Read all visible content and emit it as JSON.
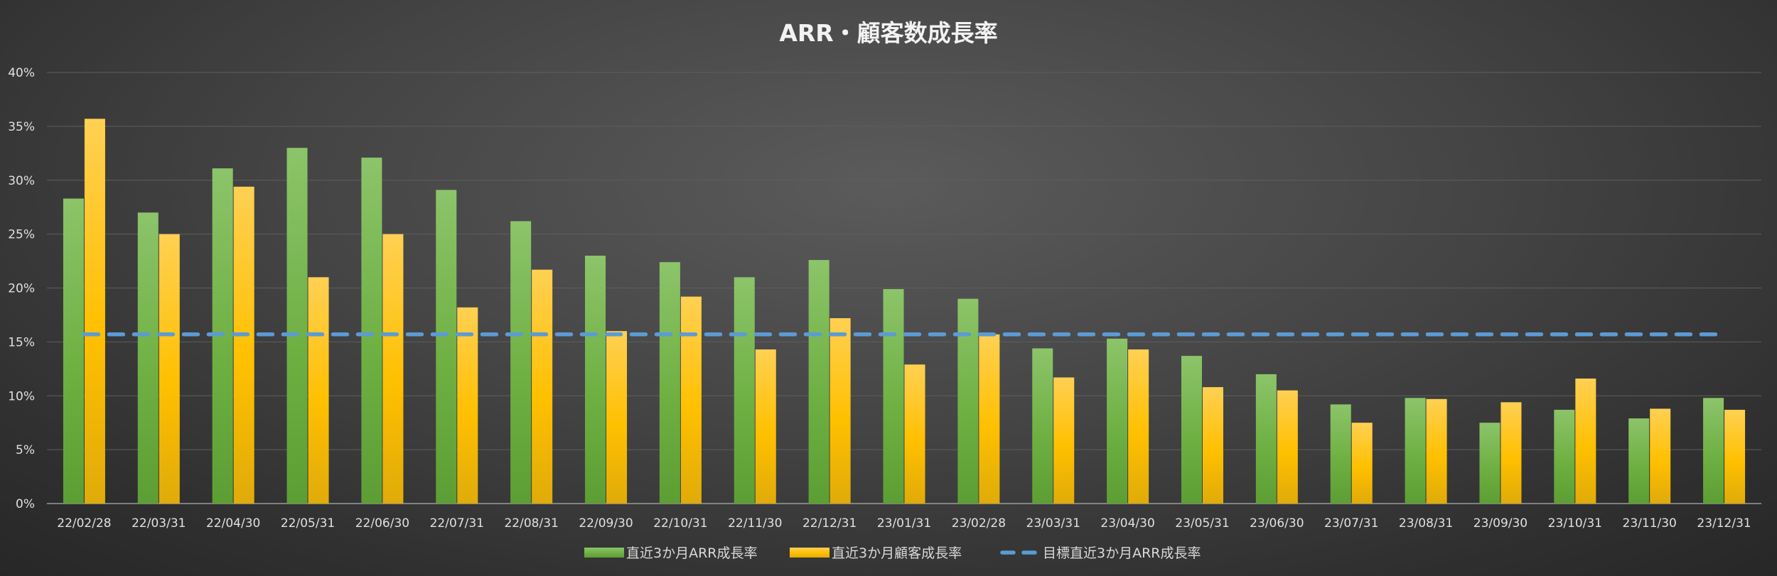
{
  "chart_data": {
    "type": "bar",
    "title": "ARR・顧客数成長率",
    "xlabel": "",
    "ylabel": "",
    "ylim": [
      0,
      0.4
    ],
    "ytick_labels": [
      "0%",
      "5%",
      "10%",
      "15%",
      "20%",
      "25%",
      "30%",
      "35%",
      "40%"
    ],
    "categories": [
      "22/02/28",
      "22/03/31",
      "22/04/30",
      "22/05/31",
      "22/06/30",
      "22/07/31",
      "22/08/31",
      "22/09/30",
      "22/10/31",
      "22/11/30",
      "22/12/31",
      "23/01/31",
      "23/02/28",
      "23/03/31",
      "23/04/30",
      "23/05/31",
      "23/06/30",
      "23/07/31",
      "23/08/31",
      "23/09/30",
      "23/10/31",
      "23/11/30",
      "23/12/31"
    ],
    "series": [
      {
        "name": "直近3か月ARR成長率",
        "kind": "bar",
        "color": "#70ad47",
        "values": [
          0.283,
          0.27,
          0.311,
          0.33,
          0.321,
          0.291,
          0.262,
          0.23,
          0.224,
          0.21,
          0.226,
          0.199,
          0.19,
          0.144,
          0.153,
          0.137,
          0.12,
          0.092,
          0.098,
          0.075,
          0.087,
          0.079,
          0.098
        ]
      },
      {
        "name": "直近3か月顧客成長率",
        "kind": "bar",
        "color": "#ffc000",
        "values": [
          0.357,
          0.25,
          0.294,
          0.21,
          0.25,
          0.182,
          0.217,
          0.16,
          0.192,
          0.143,
          0.172,
          0.129,
          0.157,
          0.117,
          0.143,
          0.108,
          0.105,
          0.075,
          0.097,
          0.094,
          0.116,
          0.088,
          0.087
        ]
      },
      {
        "name": "目標直近3か月ARR成長率",
        "kind": "line-dashed",
        "color": "#5b9bd5",
        "values": [
          0.157,
          0.157,
          0.157,
          0.157,
          0.157,
          0.157,
          0.157,
          0.157,
          0.157,
          0.157,
          0.157,
          0.157,
          0.157,
          0.157,
          0.157,
          0.157,
          0.157,
          0.157,
          0.157,
          0.157,
          0.157,
          0.157,
          0.157
        ]
      }
    ],
    "grid": true,
    "legend": "bottom-center"
  }
}
